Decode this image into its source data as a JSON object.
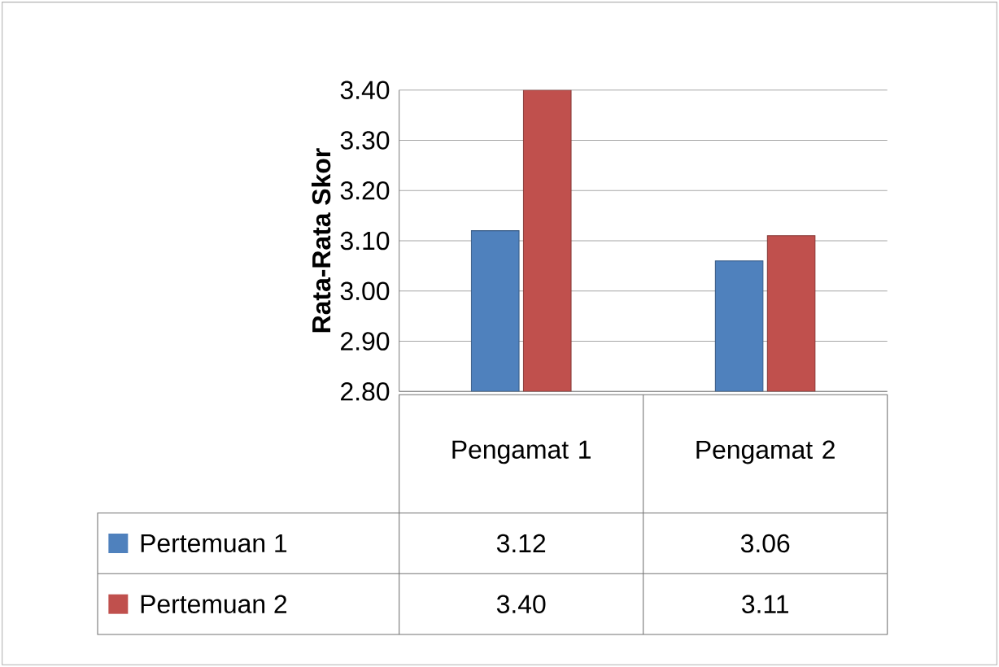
{
  "chart_data": {
    "type": "bar",
    "ylabel": "Rata-Rata Skor",
    "categories": [
      "Pengamat 1",
      "Pengamat 2"
    ],
    "series": [
      {
        "name": "Pertemuan 1",
        "color": "#4f81bd",
        "values": [
          3.12,
          3.06
        ],
        "value_labels": [
          "3.12",
          "3.06"
        ]
      },
      {
        "name": "Pertemuan 2",
        "color": "#c0504d",
        "values": [
          3.4,
          3.11
        ],
        "value_labels": [
          "3.40",
          "3.11"
        ]
      }
    ],
    "ylim": [
      2.8,
      3.4
    ],
    "yticks": [
      {
        "value": 2.8,
        "label": "2.80"
      },
      {
        "value": 2.9,
        "label": "2.90"
      },
      {
        "value": 3.0,
        "label": "3.00"
      },
      {
        "value": 3.1,
        "label": "3.10"
      },
      {
        "value": 3.2,
        "label": "3.20"
      },
      {
        "value": 3.3,
        "label": "3.30"
      },
      {
        "value": 3.4,
        "label": "3.40"
      }
    ],
    "grid": "y",
    "legend": "bottom"
  }
}
